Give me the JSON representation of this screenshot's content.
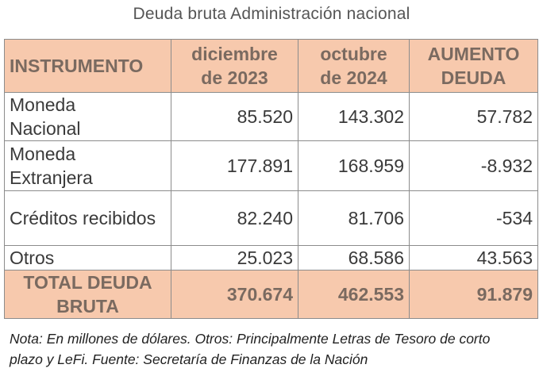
{
  "title": "Deuda bruta Administración nacional",
  "headers": {
    "instrument": "INSTRUMENTO",
    "col1_line1": "diciembre",
    "col1_line2": "de 2023",
    "col2_line1": "octubre",
    "col2_line2": "de 2024",
    "col3_line1": "AUMENTO",
    "col3_line2": "DEUDA"
  },
  "rows": [
    {
      "label_line1": "Moneda",
      "label_line2": "Nacional",
      "dec2023": "85.520",
      "oct2024": "143.302",
      "increase": "57.782"
    },
    {
      "label_line1": "Moneda",
      "label_line2": "Extranjera",
      "dec2023": "177.891",
      "oct2024": "168.959",
      "increase": "-8.932"
    },
    {
      "label_line1": "Créditos recibidos",
      "label_line2": "",
      "dec2023": "82.240",
      "oct2024": "81.706",
      "increase": "-534"
    },
    {
      "label_line1": "Otros",
      "label_line2": "",
      "dec2023": "25.023",
      "oct2024": "68.586",
      "increase": "43.563"
    }
  ],
  "total": {
    "label_line1": "TOTAL DEUDA",
    "label_line2": "BRUTA",
    "dec2023": "370.674",
    "oct2024": "462.553",
    "increase": "91.879"
  },
  "note": {
    "line1": "Nota: En millones de dólares. Otros:  Principalmente Letras de Tesoro de corto",
    "line2": "plazo  y LeFi. Fuente: Secretaría de Finanzas de la Nación"
  }
}
